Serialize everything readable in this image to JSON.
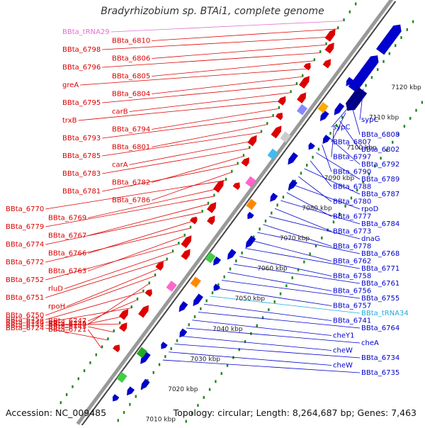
{
  "title": "Bradyrhizobium sp. BTAi1, complete genome",
  "accession": "Accession: NC_009485",
  "summary": "Topology: circular; Length: 8,264,687 bp; Genes: 7,463",
  "colors": {
    "forward": "#dd0000",
    "reverse": "#0000cc",
    "trna": "#e36fd0",
    "trna_rev": "#22aadd",
    "tick_green": "#228822",
    "backbone": "#888888"
  },
  "ticks": [
    "7010 kbp",
    "7020 kbp",
    "7030 kbp",
    "7040 kbp",
    "7050 kbp",
    "7060 kbp",
    "7070 kbp",
    "7080 kbp",
    "7090 kbp",
    "7100 kbp",
    "7110 kbp",
    "7120 kbp"
  ],
  "left_labels": [
    {
      "text": "BBta_tRNA29",
      "type": "trna"
    },
    {
      "text": "BBta_6810",
      "type": "forward"
    },
    {
      "text": "BBta_6798",
      "type": "forward"
    },
    {
      "text": "BBta_6806",
      "type": "forward"
    },
    {
      "text": "BBta_6796",
      "type": "forward"
    },
    {
      "text": "BBta_6805",
      "type": "forward"
    },
    {
      "text": "greA",
      "type": "forward"
    },
    {
      "text": "BBta_6804",
      "type": "forward"
    },
    {
      "text": "BBta_6795",
      "type": "forward"
    },
    {
      "text": "carB",
      "type": "forward"
    },
    {
      "text": "trxB",
      "type": "forward"
    },
    {
      "text": "BBta_6794",
      "type": "forward"
    },
    {
      "text": "BBta_6793",
      "type": "forward"
    },
    {
      "text": "BBta_6801",
      "type": "forward"
    },
    {
      "text": "BBta_6785",
      "type": "forward"
    },
    {
      "text": "carA",
      "type": "forward"
    },
    {
      "text": "BBta_6783",
      "type": "forward"
    },
    {
      "text": "BBta_6782",
      "type": "forward"
    },
    {
      "text": "BBta_6781",
      "type": "forward"
    },
    {
      "text": "BBta_6786",
      "type": "forward"
    },
    {
      "text": "BBta_6770",
      "type": "forward"
    },
    {
      "text": "BBta_6769",
      "type": "forward"
    },
    {
      "text": "BBta_6779",
      "type": "forward"
    },
    {
      "text": "BBta_6767",
      "type": "forward"
    },
    {
      "text": "BBta_6774",
      "type": "forward"
    },
    {
      "text": "BBta_6766",
      "type": "forward"
    },
    {
      "text": "BBta_6772",
      "type": "forward"
    },
    {
      "text": "BBta_6763",
      "type": "forward"
    },
    {
      "text": "BBta_6752",
      "type": "forward"
    },
    {
      "text": "rluD",
      "type": "forward"
    },
    {
      "text": "BBta_6751",
      "type": "forward"
    },
    {
      "text": "rpoH",
      "type": "forward"
    },
    {
      "text": "BBta_6750",
      "type": "forward"
    },
    {
      "text": "BBta_6749",
      "type": "forward"
    },
    {
      "text": "BBta_6754",
      "type": "forward"
    },
    {
      "text": "BBta_6747",
      "type": "forward"
    },
    {
      "text": "BBta_6746",
      "type": "forward"
    },
    {
      "text": "BBta_6745",
      "type": "forward"
    },
    {
      "text": "BBta_6744",
      "type": "forward"
    },
    {
      "text": "BBta_6743",
      "type": "forward"
    },
    {
      "text": "BBta_6724",
      "type": "forward"
    },
    {
      "text": "BBta_6721",
      "type": "forward"
    }
  ],
  "right_labels": [
    {
      "text": "sypC",
      "type": "reverse"
    },
    {
      "text": "sypC",
      "type": "reverse"
    },
    {
      "text": "BBta_6808",
      "type": "reverse"
    },
    {
      "text": "BBta_6807",
      "type": "reverse"
    },
    {
      "text": "BBta_6802",
      "type": "reverse"
    },
    {
      "text": "BBta_6797",
      "type": "reverse"
    },
    {
      "text": "BBta_6792",
      "type": "reverse"
    },
    {
      "text": "BBta_6790",
      "type": "reverse"
    },
    {
      "text": "BBta_6789",
      "type": "reverse"
    },
    {
      "text": "BBta_6788",
      "type": "reverse"
    },
    {
      "text": "BBta_6787",
      "type": "reverse"
    },
    {
      "text": "BBta_6780",
      "type": "reverse"
    },
    {
      "text": "rpoD",
      "type": "reverse"
    },
    {
      "text": "BBta_6777",
      "type": "reverse"
    },
    {
      "text": "BBta_6784",
      "type": "reverse"
    },
    {
      "text": "BBta_6773",
      "type": "reverse"
    },
    {
      "text": "dnaG",
      "type": "reverse"
    },
    {
      "text": "BBta_6778",
      "type": "reverse"
    },
    {
      "text": "BBta_6768",
      "type": "reverse"
    },
    {
      "text": "BBta_6762",
      "type": "reverse"
    },
    {
      "text": "BBta_6771",
      "type": "reverse"
    },
    {
      "text": "BBta_6758",
      "type": "reverse"
    },
    {
      "text": "BBta_6761",
      "type": "reverse"
    },
    {
      "text": "BBta_6756",
      "type": "reverse"
    },
    {
      "text": "BBta_6755",
      "type": "reverse"
    },
    {
      "text": "BBta_6757",
      "type": "reverse"
    },
    {
      "text": "BBta_tRNA34",
      "type": "trna_rev"
    },
    {
      "text": "BBta_6741",
      "type": "reverse"
    },
    {
      "text": "BBta_6764",
      "type": "reverse"
    },
    {
      "text": "cheY1",
      "type": "reverse"
    },
    {
      "text": "cheA",
      "type": "reverse"
    },
    {
      "text": "cheW",
      "type": "reverse"
    },
    {
      "text": "BBta_6734",
      "type": "reverse"
    },
    {
      "text": "cheW",
      "type": "reverse"
    },
    {
      "text": "BBta_6735",
      "type": "reverse"
    }
  ]
}
